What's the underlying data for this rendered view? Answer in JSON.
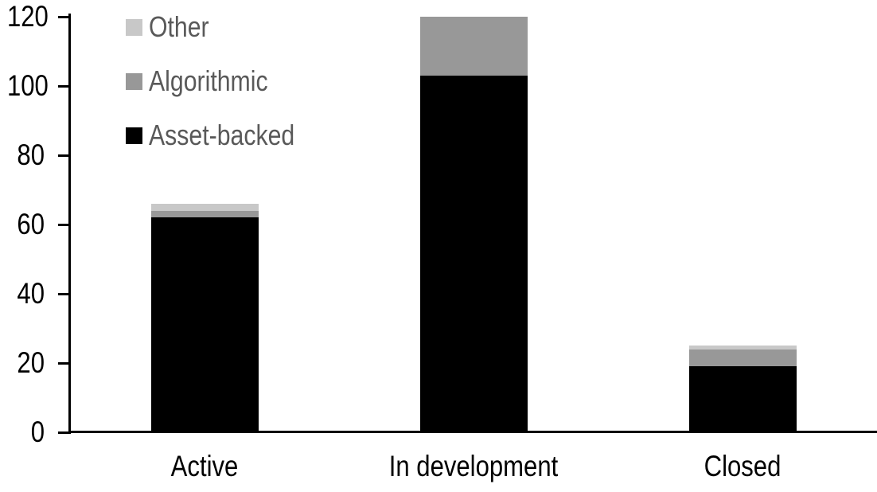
{
  "chart_data": {
    "type": "bar",
    "stacked": true,
    "title": "",
    "xlabel": "",
    "ylabel": "",
    "categories": [
      "Active",
      "In development",
      "Closed"
    ],
    "series": [
      {
        "name": "Asset-backed",
        "color": "#000000",
        "values": [
          62,
          103,
          19
        ]
      },
      {
        "name": "Algorithmic",
        "color": "#989898",
        "values": [
          2,
          17,
          5
        ]
      },
      {
        "name": "Other",
        "color": "#c8c8c8",
        "values": [
          2,
          0,
          1
        ]
      }
    ],
    "totals": [
      66,
      120,
      25
    ],
    "ylim": [
      0,
      120
    ],
    "yticks": [
      0,
      20,
      40,
      60,
      80,
      100,
      120
    ],
    "grid": false,
    "legend_position": "top-left",
    "legend_order": [
      "Other",
      "Algorithmic",
      "Asset-backed"
    ]
  },
  "colors": {
    "background": "#ffffff",
    "axis": "#000000",
    "axis_text": "#000000",
    "legend_text": "#595959"
  }
}
